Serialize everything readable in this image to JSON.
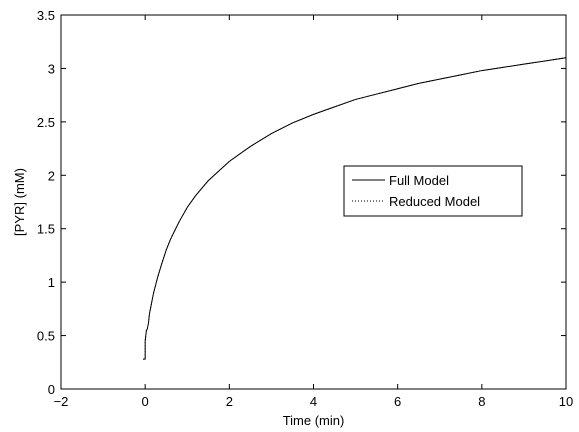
{
  "chart_data": {
    "type": "line",
    "title": "",
    "xlabel": "Time (min)",
    "ylabel": "[PYR] (mM)",
    "xlim": [
      -2,
      10
    ],
    "ylim": [
      0,
      3.5
    ],
    "xticks": [
      -2,
      0,
      2,
      4,
      6,
      8,
      10
    ],
    "xtick_labels": [
      "−2",
      "0",
      "2",
      "4",
      "6",
      "8",
      "10"
    ],
    "yticks": [
      0,
      0.5,
      1,
      1.5,
      2,
      2.5,
      3,
      3.5
    ],
    "ytick_labels": [
      "0",
      "0.5",
      "1",
      "1.5",
      "2",
      "2.5",
      "3",
      "3.5"
    ],
    "grid": false,
    "legend_position": "right",
    "series": [
      {
        "name": "Full Model",
        "style": "solid",
        "color": "#000000",
        "x": [
          -0.05,
          0.0,
          0.0,
          0.03,
          0.05,
          0.08,
          0.1,
          0.15,
          0.2,
          0.3,
          0.4,
          0.5,
          0.6,
          0.7,
          0.8,
          1.0,
          1.2,
          1.5,
          2.0,
          2.5,
          3.0,
          3.5,
          4.0,
          4.5,
          5.0,
          5.5,
          6.0,
          6.5,
          7.0,
          7.5,
          8.0,
          8.5,
          9.0,
          9.5,
          10.0
        ],
        "y": [
          0.28,
          0.28,
          0.45,
          0.55,
          0.56,
          0.62,
          0.7,
          0.8,
          0.9,
          1.05,
          1.18,
          1.3,
          1.4,
          1.48,
          1.56,
          1.7,
          1.81,
          1.95,
          2.13,
          2.27,
          2.39,
          2.49,
          2.57,
          2.64,
          2.71,
          2.76,
          2.81,
          2.86,
          2.9,
          2.94,
          2.98,
          3.01,
          3.04,
          3.07,
          3.1
        ]
      },
      {
        "name": "Reduced Model",
        "style": "dotted",
        "color": "#000000",
        "x": [
          -0.05,
          0.0,
          0.0,
          0.03,
          0.05,
          0.08,
          0.1,
          0.15,
          0.2,
          0.3,
          0.4,
          0.5,
          0.6,
          0.7,
          0.8,
          1.0,
          1.2,
          1.5,
          2.0,
          2.5,
          3.0,
          3.5,
          4.0,
          4.5,
          5.0,
          5.5,
          6.0,
          6.5,
          7.0,
          7.5,
          8.0,
          8.5,
          9.0,
          9.5,
          10.0
        ],
        "y": [
          0.28,
          0.28,
          0.45,
          0.55,
          0.56,
          0.62,
          0.7,
          0.8,
          0.9,
          1.05,
          1.18,
          1.3,
          1.4,
          1.48,
          1.56,
          1.7,
          1.81,
          1.95,
          2.13,
          2.27,
          2.39,
          2.49,
          2.57,
          2.64,
          2.71,
          2.76,
          2.81,
          2.86,
          2.9,
          2.94,
          2.98,
          3.01,
          3.04,
          3.07,
          3.1
        ]
      }
    ]
  }
}
